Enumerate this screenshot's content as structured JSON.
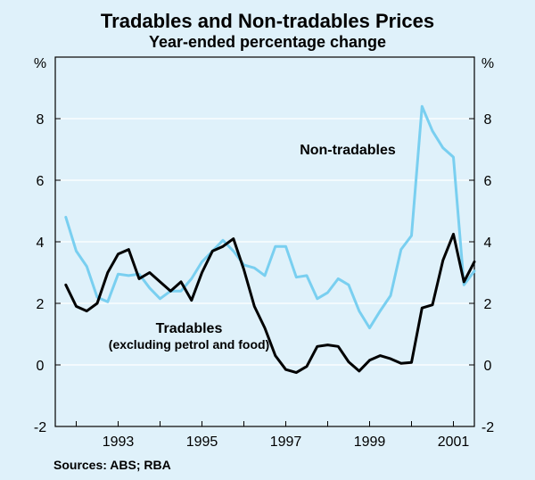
{
  "chart_data": {
    "type": "line",
    "title": "Tradables and Non-tradables Prices",
    "subtitle": "Year-ended percentage change",
    "ylabel_left": "%",
    "ylabel_right": "%",
    "ylim": [
      -2,
      10
    ],
    "yticks": [
      -2,
      0,
      2,
      4,
      6,
      8
    ],
    "xlim": [
      1991.5,
      2001.5
    ],
    "xticks": [
      1993,
      1995,
      1997,
      1999,
      2001
    ],
    "colors": {
      "tradables": "#000000",
      "non_tradables": "#79cff0",
      "axis": "#000000",
      "gridline": "#ffffff"
    },
    "series": [
      {
        "name": "Tradables",
        "sublabel": "(excluding petrol and food)",
        "color": "#000000",
        "x": [
          1991.75,
          1992.0,
          1992.25,
          1992.5,
          1992.75,
          1993.0,
          1993.25,
          1993.5,
          1993.75,
          1994.0,
          1994.25,
          1994.5,
          1994.75,
          1995.0,
          1995.25,
          1995.5,
          1995.75,
          1996.0,
          1996.25,
          1996.5,
          1996.75,
          1997.0,
          1997.25,
          1997.5,
          1997.75,
          1998.0,
          1998.25,
          1998.5,
          1998.75,
          1999.0,
          1999.25,
          1999.5,
          1999.75,
          2000.0,
          2000.25,
          2000.5,
          2000.75,
          2001.0,
          2001.25,
          2001.5
        ],
        "values": [
          2.6,
          1.9,
          1.75,
          2.0,
          3.0,
          3.6,
          3.75,
          2.8,
          3.0,
          2.7,
          2.4,
          2.7,
          2.1,
          3.0,
          3.7,
          3.85,
          4.1,
          3.1,
          1.9,
          1.2,
          0.3,
          -0.15,
          -0.25,
          -0.05,
          0.6,
          0.65,
          0.6,
          0.1,
          -0.2,
          0.15,
          0.3,
          0.2,
          0.05,
          0.08,
          1.85,
          1.95,
          3.4,
          4.25,
          2.7,
          3.35
        ]
      },
      {
        "name": "Non-tradables",
        "color": "#79cff0",
        "x": [
          1991.75,
          1992.0,
          1992.25,
          1992.5,
          1992.75,
          1993.0,
          1993.25,
          1993.5,
          1993.75,
          1994.0,
          1994.25,
          1994.5,
          1994.75,
          1995.0,
          1995.25,
          1995.5,
          1995.75,
          1996.0,
          1996.25,
          1996.5,
          1996.75,
          1997.0,
          1997.25,
          1997.5,
          1997.75,
          1998.0,
          1998.25,
          1998.5,
          1998.75,
          1999.0,
          1999.25,
          1999.5,
          1999.75,
          2000.0,
          2000.25,
          2000.5,
          2000.75,
          2001.0,
          2001.25,
          2001.5
        ],
        "values": [
          4.8,
          3.7,
          3.2,
          2.2,
          2.05,
          2.95,
          2.9,
          2.95,
          2.5,
          2.15,
          2.4,
          2.4,
          2.8,
          3.35,
          3.7,
          4.05,
          3.7,
          3.25,
          3.15,
          2.9,
          3.85,
          3.85,
          2.85,
          2.9,
          2.15,
          2.35,
          2.8,
          2.6,
          1.75,
          1.2,
          1.75,
          2.25,
          3.75,
          4.2,
          8.4,
          7.6,
          7.05,
          6.75,
          2.6,
          3.05
        ]
      }
    ],
    "annotations": {
      "non_tradables_label": "Non-tradables",
      "tradables_label": "Tradables",
      "tradables_sublabel": "(excluding petrol and food)"
    },
    "source": "Sources: ABS; RBA"
  }
}
